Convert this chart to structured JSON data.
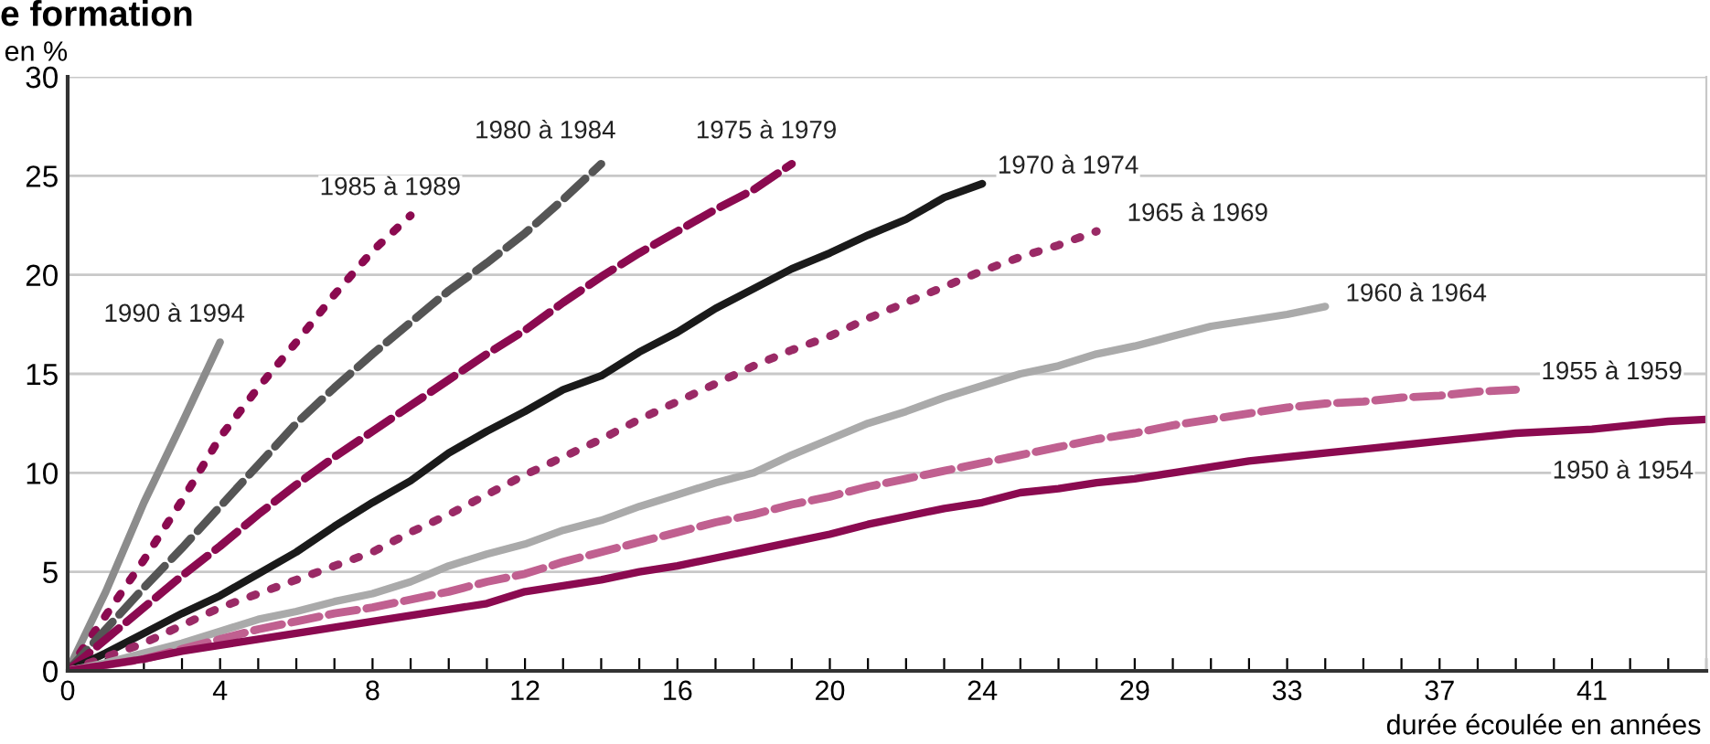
{
  "chart_data": {
    "type": "line",
    "title": "e formation",
    "ylabel": "en %",
    "xlabel": "durée écoulée en années",
    "categories": [
      "0",
      null,
      null,
      null,
      "4",
      null,
      null,
      null,
      "8",
      null,
      null,
      null,
      "12",
      null,
      null,
      null,
      "16",
      null,
      null,
      null,
      "20",
      null,
      null,
      null,
      "24",
      null,
      null,
      null,
      "29",
      null,
      null,
      null,
      "33",
      null,
      null,
      null,
      "37",
      null,
      null,
      null,
      "41",
      null,
      null,
      null
    ],
    "ylim": [
      0,
      30
    ],
    "yticks": [
      0,
      5,
      10,
      15,
      20,
      25,
      30
    ],
    "grid": "y",
    "series": [
      {
        "name": "1990 à 1994",
        "color": "#8c8c8c",
        "line_style": "solid",
        "values": [
          0,
          4,
          8.5,
          12.5,
          16.6,
          null,
          null,
          null,
          null,
          null,
          null,
          null,
          null,
          null,
          null,
          null,
          null,
          null,
          null,
          null,
          null,
          null,
          null,
          null,
          null,
          null,
          null,
          null,
          null,
          null,
          null,
          null,
          null,
          null,
          null,
          null,
          null,
          null,
          null,
          null,
          null,
          null,
          null,
          null
        ]
      },
      {
        "name": "1985 à 1989",
        "color": "#8b0a50",
        "line_style": "dotted",
        "values": [
          0,
          2.8,
          5.6,
          8.6,
          11.8,
          14.3,
          16.6,
          19.0,
          21.2,
          23.0,
          null,
          null,
          null,
          null,
          null,
          null,
          null,
          null,
          null,
          null,
          null,
          null,
          null,
          null,
          null,
          null,
          null,
          null,
          null,
          null,
          null,
          null,
          null,
          null,
          null,
          null,
          null,
          null,
          null,
          null,
          null,
          null,
          null,
          null
        ]
      },
      {
        "name": "1980 à 1984",
        "color": "#555555",
        "line_style": "dashed",
        "values": [
          0,
          2.1,
          4.2,
          6.2,
          8.3,
          10.4,
          12.5,
          14.3,
          16.0,
          17.6,
          19.2,
          20.6,
          22.1,
          23.8,
          25.6,
          null,
          null,
          null,
          null,
          null,
          null,
          null,
          null,
          null,
          null,
          null,
          null,
          null,
          null,
          null,
          null,
          null,
          null,
          null,
          null,
          null,
          null,
          null,
          null,
          null,
          null,
          null,
          null,
          null
        ]
      },
      {
        "name": "1975 à 1979",
        "color": "#8b0a50",
        "line_style": "dashed",
        "values": [
          0,
          1.6,
          3.2,
          4.8,
          6.3,
          7.9,
          9.4,
          10.8,
          12.1,
          13.4,
          14.7,
          16.0,
          17.2,
          18.6,
          19.9,
          21.1,
          22.2,
          23.3,
          24.3,
          25.6,
          null,
          null,
          null,
          null,
          null,
          null,
          null,
          null,
          null,
          null,
          null,
          null,
          null,
          null,
          null,
          null,
          null,
          null,
          null,
          null,
          null,
          null,
          null,
          null
        ]
      },
      {
        "name": "1970 à 1974",
        "color": "#1a1a1a",
        "line_style": "solid",
        "values": [
          0,
          0.9,
          1.9,
          2.9,
          3.8,
          4.9,
          6.0,
          7.3,
          8.5,
          9.6,
          11.0,
          12.1,
          13.1,
          14.2,
          14.9,
          16.1,
          17.1,
          18.3,
          19.3,
          20.3,
          21.1,
          22.0,
          22.8,
          23.9,
          24.6,
          null,
          null,
          null,
          null,
          null,
          null,
          null,
          null,
          null,
          null,
          null,
          null,
          null,
          null,
          null,
          null,
          null,
          null,
          null
        ]
      },
      {
        "name": "1965 à 1969",
        "color": "#9a2a66",
        "line_style": "dotted",
        "values": [
          0,
          0.7,
          1.4,
          2.3,
          3.2,
          3.9,
          4.6,
          5.3,
          6.0,
          7.0,
          7.9,
          8.9,
          9.9,
          10.8,
          11.7,
          12.7,
          13.6,
          14.5,
          15.4,
          16.2,
          16.9,
          17.8,
          18.6,
          19.4,
          20.2,
          20.9,
          21.5,
          22.2,
          null,
          null,
          null,
          null,
          null,
          null,
          null,
          null,
          null,
          null,
          null,
          null,
          null,
          null,
          null,
          null
        ]
      },
      {
        "name": "1960 à 1964",
        "color": "#aaaaaa",
        "line_style": "solid",
        "values": [
          0,
          0.4,
          0.9,
          1.4,
          2.0,
          2.6,
          3.0,
          3.5,
          3.9,
          4.5,
          5.3,
          5.9,
          6.4,
          7.1,
          7.6,
          8.3,
          8.9,
          9.5,
          10.0,
          10.9,
          11.7,
          12.5,
          13.1,
          13.8,
          14.4,
          15.0,
          15.4,
          16.0,
          16.4,
          16.9,
          17.4,
          17.7,
          18.0,
          18.4,
          null,
          null,
          null,
          null,
          null,
          null,
          null,
          null,
          null,
          null
        ]
      },
      {
        "name": "1955 à 1959",
        "color": "#c06090",
        "line_style": "dashed",
        "values": [
          0,
          0.3,
          0.6,
          1.1,
          1.6,
          2.1,
          2.5,
          2.9,
          3.2,
          3.6,
          4.0,
          4.5,
          4.9,
          5.5,
          6.0,
          6.5,
          7.0,
          7.5,
          7.9,
          8.4,
          8.8,
          9.3,
          9.7,
          10.1,
          10.5,
          10.9,
          11.3,
          11.7,
          12.0,
          12.4,
          12.7,
          13.0,
          13.3,
          13.5,
          13.6,
          13.8,
          13.9,
          14.1,
          14.2,
          null,
          null,
          null,
          null,
          null
        ]
      },
      {
        "name": "1950 à 1954",
        "color": "#8b0a50",
        "line_style": "solid",
        "values": [
          0,
          0.3,
          0.6,
          1.0,
          1.3,
          1.6,
          1.9,
          2.2,
          2.5,
          2.8,
          3.1,
          3.4,
          4.0,
          4.3,
          4.6,
          5.0,
          5.3,
          5.7,
          6.1,
          6.5,
          6.9,
          7.4,
          7.8,
          8.2,
          8.5,
          9.0,
          9.2,
          9.5,
          9.7,
          10.0,
          10.3,
          10.6,
          10.8,
          11.0,
          11.2,
          11.4,
          11.6,
          11.8,
          12.0,
          12.1,
          12.2,
          12.4,
          12.6,
          12.7
        ]
      }
    ]
  }
}
